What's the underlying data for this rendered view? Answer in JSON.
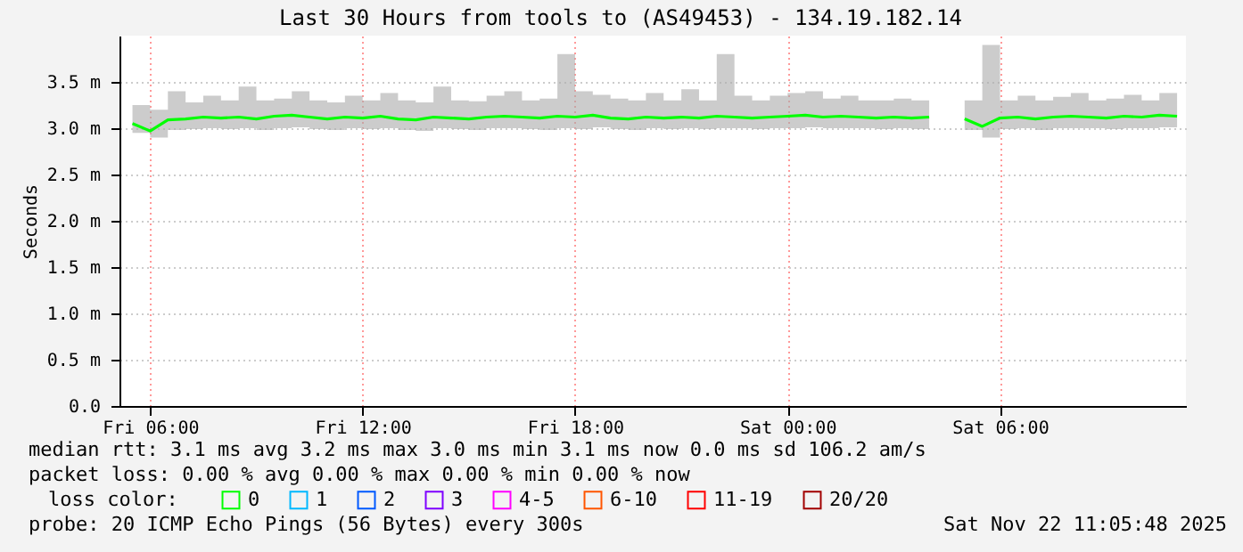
{
  "chart_data": {
    "type": "line",
    "title": "Last 30 Hours from tools to (AS49453) - 134.19.182.14",
    "ylabel": "Seconds",
    "x": [
      "2025-11-21T05:30",
      "2025-11-21T06:00",
      "2025-11-21T06:30",
      "2025-11-21T07:00",
      "2025-11-21T07:30",
      "2025-11-21T08:00",
      "2025-11-21T08:30",
      "2025-11-21T09:00",
      "2025-11-21T09:30",
      "2025-11-21T10:00",
      "2025-11-21T10:30",
      "2025-11-21T11:00",
      "2025-11-21T11:30",
      "2025-11-21T12:00",
      "2025-11-21T12:30",
      "2025-11-21T13:00",
      "2025-11-21T13:30",
      "2025-11-21T14:00",
      "2025-11-21T14:30",
      "2025-11-21T15:00",
      "2025-11-21T15:30",
      "2025-11-21T16:00",
      "2025-11-21T16:30",
      "2025-11-21T17:00",
      "2025-11-21T17:30",
      "2025-11-21T18:00",
      "2025-11-21T18:30",
      "2025-11-21T19:00",
      "2025-11-21T19:30",
      "2025-11-21T20:00",
      "2025-11-21T20:30",
      "2025-11-21T21:00",
      "2025-11-21T21:30",
      "2025-11-21T22:00",
      "2025-11-21T22:30",
      "2025-11-21T23:00",
      "2025-11-21T23:30",
      "2025-11-22T00:00",
      "2025-11-22T00:30",
      "2025-11-22T01:00",
      "2025-11-22T01:30",
      "2025-11-22T02:00",
      "2025-11-22T02:30",
      "2025-11-22T03:00",
      "2025-11-22T03:30",
      "2025-11-22T04:00",
      "2025-11-22T04:30",
      "2025-11-22T05:00",
      "2025-11-22T05:30",
      "2025-11-22T06:00",
      "2025-11-22T06:30",
      "2025-11-22T07:00",
      "2025-11-22T07:30",
      "2025-11-22T08:00",
      "2025-11-22T08:30",
      "2025-11-22T09:00",
      "2025-11-22T09:30",
      "2025-11-22T10:00",
      "2025-11-22T10:30",
      "2025-11-22T11:00"
    ],
    "series": [
      {
        "name": "0",
        "color": "#00ff00",
        "values": [
          3.05,
          2.97,
          3.09,
          3.1,
          3.12,
          3.11,
          3.12,
          3.1,
          3.13,
          3.14,
          3.12,
          3.1,
          3.12,
          3.11,
          3.13,
          3.1,
          3.09,
          3.12,
          3.11,
          3.1,
          3.12,
          3.13,
          3.12,
          3.11,
          3.13,
          3.12,
          3.14,
          3.11,
          3.1,
          3.12,
          3.11,
          3.12,
          3.11,
          3.13,
          3.12,
          3.11,
          3.12,
          3.13,
          3.14,
          3.12,
          3.13,
          3.12,
          3.11,
          3.12,
          3.11,
          3.12,
          null,
          3.1,
          3.02,
          3.11,
          3.12,
          3.1,
          3.12,
          3.13,
          3.12,
          3.11,
          3.13,
          3.12,
          3.14,
          3.13
        ],
        "lower": [
          2.95,
          2.9,
          2.98,
          2.99,
          3.0,
          2.99,
          3.0,
          2.98,
          3.0,
          3.01,
          2.99,
          2.98,
          3.0,
          2.99,
          3.0,
          2.98,
          2.97,
          3.0,
          2.99,
          2.98,
          3.0,
          3.0,
          2.99,
          2.98,
          3.0,
          2.99,
          3.01,
          2.99,
          2.98,
          3.0,
          2.99,
          3.0,
          2.99,
          3.0,
          3.0,
          2.99,
          3.0,
          3.0,
          3.01,
          3.0,
          3.0,
          3.0,
          2.99,
          3.0,
          2.99,
          3.0,
          null,
          2.98,
          2.9,
          2.99,
          3.0,
          2.98,
          3.0,
          3.0,
          3.0,
          2.99,
          3.0,
          3.0,
          3.01,
          3.0
        ],
        "upper": [
          3.25,
          3.2,
          3.4,
          3.28,
          3.35,
          3.3,
          3.45,
          3.3,
          3.32,
          3.4,
          3.3,
          3.28,
          3.35,
          3.3,
          3.38,
          3.3,
          3.28,
          3.45,
          3.3,
          3.29,
          3.35,
          3.4,
          3.3,
          3.32,
          3.8,
          3.4,
          3.36,
          3.32,
          3.3,
          3.38,
          3.3,
          3.42,
          3.3,
          3.8,
          3.35,
          3.3,
          3.35,
          3.38,
          3.4,
          3.32,
          3.35,
          3.3,
          3.3,
          3.32,
          3.3,
          3.3,
          null,
          3.3,
          3.9,
          3.3,
          3.35,
          3.3,
          3.34,
          3.38,
          3.3,
          3.32,
          3.36,
          3.3,
          3.38,
          3.33
        ]
      },
      {
        "name": "1",
        "color": "#00b8ff",
        "values": [
          null,
          null,
          null,
          null,
          null,
          null,
          null,
          null,
          null,
          null,
          null,
          null,
          null,
          null,
          null,
          null,
          null,
          null,
          null,
          null,
          null,
          null,
          null,
          null,
          null,
          null,
          null,
          null,
          null,
          null,
          null,
          null,
          null,
          null,
          null,
          null,
          null,
          null,
          null,
          null,
          null,
          null,
          null,
          null,
          null,
          null,
          null,
          null,
          null,
          null,
          null,
          null,
          null,
          null,
          null,
          null,
          null,
          null,
          null,
          null
        ]
      },
      {
        "name": "2",
        "color": "#0059ff",
        "values": [
          null,
          null,
          null,
          null,
          null,
          null,
          null,
          null,
          null,
          null,
          null,
          null,
          null,
          null,
          null,
          null,
          null,
          null,
          null,
          null,
          null,
          null,
          null,
          null,
          null,
          null,
          null,
          null,
          null,
          null,
          null,
          null,
          null,
          null,
          null,
          null,
          null,
          null,
          null,
          null,
          null,
          null,
          null,
          null,
          null,
          null,
          null,
          null,
          null,
          null,
          null,
          null,
          null,
          null,
          null,
          null,
          null,
          null,
          null,
          null
        ]
      },
      {
        "name": "3",
        "color": "#7e00ff",
        "values": [
          null,
          null,
          null,
          null,
          null,
          null,
          null,
          null,
          null,
          null,
          null,
          null,
          null,
          null,
          null,
          null,
          null,
          null,
          null,
          null,
          null,
          null,
          null,
          null,
          null,
          null,
          null,
          null,
          null,
          null,
          null,
          null,
          null,
          null,
          null,
          null,
          null,
          null,
          null,
          null,
          null,
          null,
          null,
          null,
          null,
          null,
          null,
          null,
          null,
          null,
          null,
          null,
          null,
          null,
          null,
          null,
          null,
          null,
          null,
          null
        ]
      },
      {
        "name": "4-5",
        "color": "#ff00ff",
        "values": [
          null,
          null,
          null,
          null,
          null,
          null,
          null,
          null,
          null,
          null,
          null,
          null,
          null,
          null,
          null,
          null,
          null,
          null,
          null,
          null,
          null,
          null,
          null,
          null,
          null,
          null,
          null,
          null,
          null,
          null,
          null,
          null,
          null,
          null,
          null,
          null,
          null,
          null,
          null,
          null,
          null,
          null,
          null,
          null,
          null,
          null,
          null,
          null,
          null,
          null,
          null,
          null,
          null,
          null,
          null,
          null,
          null,
          null,
          null,
          null
        ]
      },
      {
        "name": "6-10",
        "color": "#ff5500",
        "values": [
          null,
          null,
          null,
          null,
          null,
          null,
          null,
          null,
          null,
          null,
          null,
          null,
          null,
          null,
          null,
          null,
          null,
          null,
          null,
          null,
          null,
          null,
          null,
          null,
          null,
          null,
          null,
          null,
          null,
          null,
          null,
          null,
          null,
          null,
          null,
          null,
          null,
          null,
          null,
          null,
          null,
          null,
          null,
          null,
          null,
          null,
          null,
          null,
          null,
          null,
          null,
          null,
          null,
          null,
          null,
          null,
          null,
          null,
          null,
          null
        ]
      },
      {
        "name": "11-19",
        "color": "#ff0000",
        "values": [
          null,
          null,
          null,
          null,
          null,
          null,
          null,
          null,
          null,
          null,
          null,
          null,
          null,
          null,
          null,
          null,
          null,
          null,
          null,
          null,
          null,
          null,
          null,
          null,
          null,
          null,
          null,
          null,
          null,
          null,
          null,
          null,
          null,
          null,
          null,
          null,
          null,
          null,
          null,
          null,
          null,
          null,
          null,
          null,
          null,
          null,
          null,
          null,
          null,
          null,
          null,
          null,
          null,
          null,
          null,
          null,
          null,
          null,
          null,
          null
        ]
      },
      {
        "name": "20/20",
        "color": "#a10000",
        "values": [
          null,
          null,
          null,
          null,
          null,
          null,
          null,
          null,
          null,
          null,
          null,
          null,
          null,
          null,
          null,
          null,
          null,
          null,
          null,
          null,
          null,
          null,
          null,
          null,
          null,
          null,
          null,
          null,
          null,
          null,
          null,
          null,
          null,
          null,
          null,
          null,
          null,
          null,
          null,
          null,
          null,
          null,
          null,
          null,
          null,
          null,
          null,
          null,
          null,
          null,
          null,
          null,
          null,
          null,
          null,
          null,
          null,
          null,
          null,
          null
        ]
      }
    ],
    "legend_title": "loss color:",
    "legend": "bottom",
    "xlim": [
      "2025-11-21T05:08",
      "2025-11-22T11:15"
    ],
    "xticks": [
      {
        "value": "2025-11-21T06:00",
        "label": "Fri 06:00"
      },
      {
        "value": "2025-11-21T12:00",
        "label": "Fri 12:00"
      },
      {
        "value": "2025-11-21T18:00",
        "label": "Fri 18:00"
      },
      {
        "value": "2025-11-22T00:00",
        "label": "Sat 00:00"
      },
      {
        "value": "2025-11-22T06:00",
        "label": "Sat 06:00"
      }
    ],
    "ylim": [
      0,
      4.0
    ],
    "yticks": [
      {
        "value": 0,
        "label": "0.0"
      },
      {
        "value": 0.5,
        "label": "0.5 m"
      },
      {
        "value": 1.0,
        "label": "1.0 m"
      },
      {
        "value": 1.5,
        "label": "1.5 m"
      },
      {
        "value": 2.0,
        "label": "2.0 m"
      },
      {
        "value": 2.5,
        "label": "2.5 m"
      },
      {
        "value": 3.0,
        "label": "3.0 m"
      },
      {
        "value": 3.5,
        "label": "3.5 m"
      }
    ],
    "grid": true,
    "marker": "none",
    "line_style": "solid",
    "annotations": [
      "median rtt:  3.1 ms avg  3.2 ms max  3.0 ms min  3.1 ms now  0.0 ms sd  106.2   am/s",
      "packet loss: 0.00 % avg  0.00 % max  0.00 % min  0.00 % now",
      "probe:       20 ICMP Echo Pings (56 Bytes) every 300s",
      "Sat Nov 22 11:05:48 2025"
    ]
  }
}
